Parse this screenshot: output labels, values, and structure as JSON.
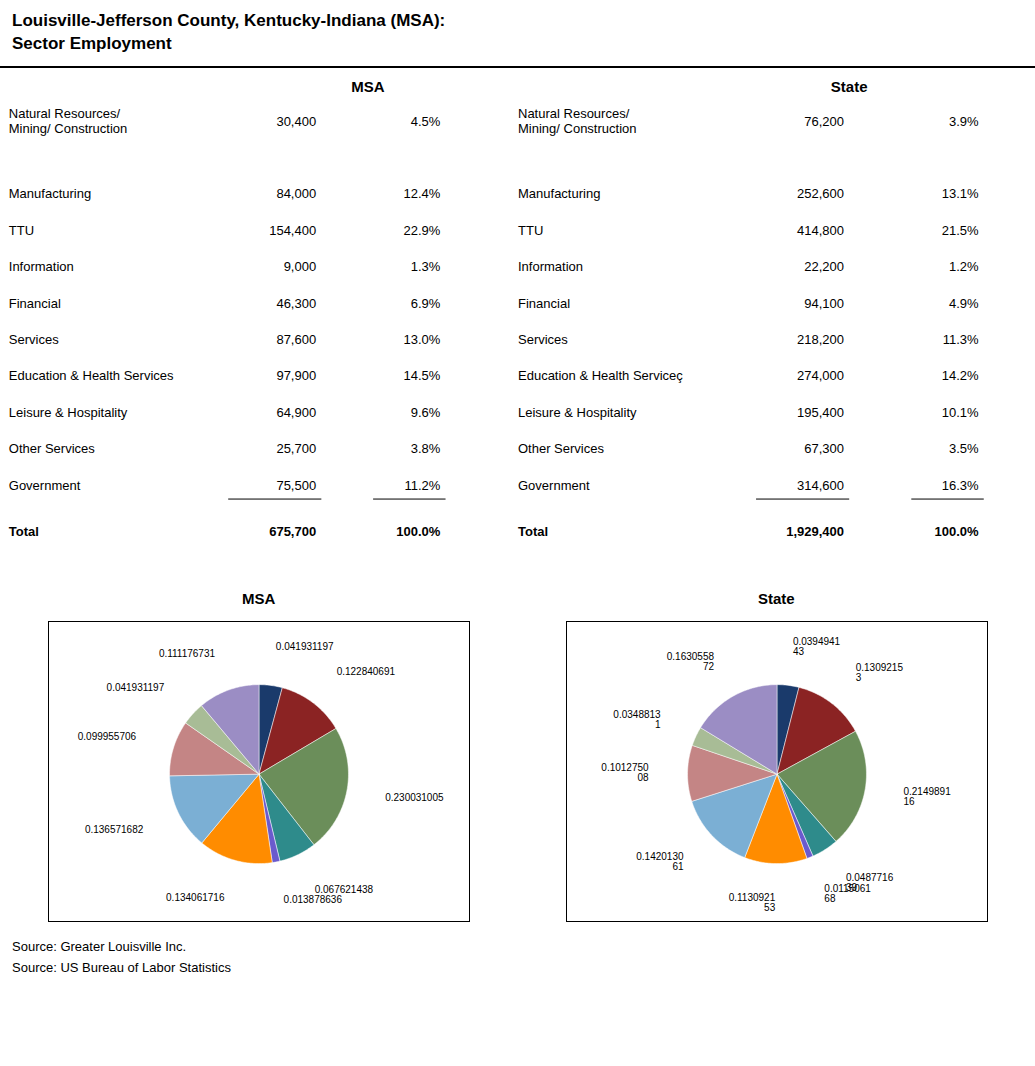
{
  "chart_data": [
    {
      "type": "table",
      "title": "Louisville-Jefferson County, Kentucky-Indiana (MSA):\nSector Employment",
      "categories": [
        "Natural Resources/\nMining/ Construction",
        "Manufacturing",
        "TTU",
        "Information",
        "Financial",
        "Services",
        "Education & Health Services",
        "Leisure & Hospitality",
        "Other Services",
        "Government",
        "Total"
      ],
      "series": [
        {
          "name": "MSA",
          "values": [
            30400,
            84000,
            154400,
            9000,
            46300,
            87600,
            97900,
            64900,
            25700,
            75500,
            675700
          ],
          "value_labels": [
            "30,400",
            "84,000",
            "154,400",
            "9,000",
            "46,300",
            "87,600",
            "97,900",
            "64,900",
            "25,700",
            "75,500",
            "675,700"
          ],
          "percents": [
            4.5,
            12.4,
            22.9,
            1.3,
            6.9,
            13.0,
            14.5,
            9.6,
            3.8,
            11.2,
            100.0
          ],
          "percent_labels": [
            "4.5%",
            "12.4%",
            "22.9%",
            "1.3%",
            "6.9%",
            "13.0%",
            "14.5%",
            "9.6%",
            "3.8%",
            "11.2%",
            "100.0%"
          ]
        },
        {
          "name": "State",
          "categories": [
            "Natural Resources/\nMining/ Construction",
            "Manufacturing",
            "TTU",
            "Information",
            "Financial",
            "Services",
            "Education & Health Serviceç",
            "Leisure & Hospitality",
            "Other Services",
            "Government",
            "Total"
          ],
          "values": [
            76200,
            252600,
            414800,
            22200,
            94100,
            218200,
            274000,
            195400,
            67300,
            314600,
            1929400
          ],
          "value_labels": [
            "76,200",
            "252,600",
            "414,800",
            "22,200",
            "94,100",
            "218,200",
            "274,000",
            "195,400",
            "67,300",
            "314,600",
            "1,929,400"
          ],
          "percents": [
            3.9,
            13.1,
            21.5,
            1.2,
            4.9,
            11.3,
            14.2,
            10.1,
            3.5,
            16.3,
            100.0
          ],
          "percent_labels": [
            "3.9%",
            "13.1%",
            "21.5%",
            "1.2%",
            "4.9%",
            "11.3%",
            "14.2%",
            "10.1%",
            "3.5%",
            "16.3%",
            "100.0%"
          ]
        }
      ],
      "annotations": [
        "Source: Greater Louisville Inc.",
        "Source: US Bureau of Labor Statistics"
      ]
    },
    {
      "type": "pie",
      "title": "MSA",
      "values": [
        0.041931197,
        0.122840691,
        0.230031005,
        0.067621438,
        0.013878636,
        0.134061716,
        0.136571682,
        0.099955706,
        0.041931197,
        0.111176731
      ],
      "colors": [
        "#1a3a6b",
        "#8B2323",
        "#6b8e5a",
        "#2e8b8b",
        "#6a5acd",
        "#ff8c00",
        "#7bafd4",
        "#c48585",
        "#a8bc96",
        "#9b8dc4"
      ],
      "data_labels": true
    },
    {
      "type": "pie",
      "title": "State",
      "values": [
        0.039494143,
        0.13092153,
        0.214989116,
        0.048771639,
        0.011506168,
        0.113092153,
        0.142013061,
        0.101275008,
        0.03488131,
        0.163055872
      ],
      "value_labels": [
        "0.0394941\n43",
        "0.1309215\n3",
        "0.2149891\n16",
        "0.0487716\n39",
        "0.0115061\n68",
        "0.1130921\n53",
        "0.1420130\n61",
        "0.1012750\n08",
        "0.0348813\n1",
        "0.1630558\n72"
      ],
      "colors": [
        "#1a3a6b",
        "#8B2323",
        "#6b8e5a",
        "#2e8b8b",
        "#6a5acd",
        "#ff8c00",
        "#7bafd4",
        "#c48585",
        "#a8bc96",
        "#9b8dc4"
      ],
      "data_labels": true
    }
  ]
}
